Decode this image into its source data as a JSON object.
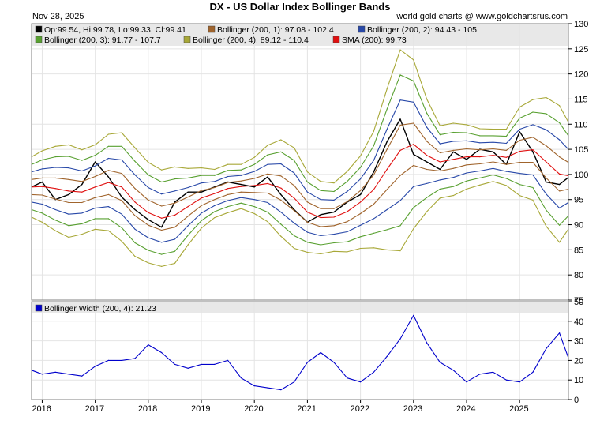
{
  "header": {
    "title": "DX  -  US Dollar Index Bollinger Bands",
    "date": "Nov 28, 2025",
    "credit": "world gold charts @ www.goldchartsrus.com"
  },
  "chart_data": [
    {
      "type": "line",
      "title": "DX - US Dollar Index Bollinger Bands",
      "ylim": [
        75,
        130
      ],
      "yticks": [
        75,
        80,
        85,
        90,
        95,
        100,
        105,
        110,
        115,
        120,
        125,
        130
      ],
      "x": [
        2015.8,
        2016.0,
        2016.25,
        2016.5,
        2016.75,
        2017.0,
        2017.25,
        2017.5,
        2017.75,
        2018.0,
        2018.25,
        2018.5,
        2018.75,
        2019.0,
        2019.25,
        2019.5,
        2019.75,
        2020.0,
        2020.25,
        2020.5,
        2020.75,
        2021.0,
        2021.25,
        2021.5,
        2021.75,
        2022.0,
        2022.25,
        2022.5,
        2022.75,
        2023.0,
        2023.25,
        2023.5,
        2023.75,
        2024.0,
        2024.25,
        2024.5,
        2024.75,
        2025.0,
        2025.25,
        2025.5,
        2025.75,
        2025.92
      ],
      "legend": [
        {
          "label": "Op:99.54, Hi:99.78, Lo:99.33, Cl:99.41",
          "color": "#000000"
        },
        {
          "label": "Bollinger (200, 1): 97.08 - 102.4",
          "color": "#a0642c"
        },
        {
          "label": "Bollinger (200, 2): 94.43 - 105",
          "color": "#2848a8"
        },
        {
          "label": "Bollinger (200, 3): 91.77 - 107.7",
          "color": "#58a030"
        },
        {
          "label": "Bollinger (200, 4): 89.12 - 110.4",
          "color": "#a8a838"
        },
        {
          "label": "SMA (200): 99.73",
          "color": "#e01010"
        }
      ],
      "series": [
        {
          "name": "DX Close",
          "color": "#000000",
          "values": [
            97.5,
            98.5,
            95.0,
            96.0,
            98.0,
            102.5,
            99.5,
            95.5,
            93.0,
            91.0,
            89.5,
            94.5,
            96.5,
            96.5,
            97.5,
            98.5,
            98.0,
            97.5,
            99.5,
            96.0,
            93.0,
            90.5,
            92.0,
            92.5,
            94.5,
            96.0,
            100.5,
            106.5,
            111.0,
            104.0,
            102.5,
            101.0,
            104.5,
            103.0,
            105.0,
            104.5,
            102.0,
            108.5,
            104.5,
            98.5,
            98.0,
            99.41
          ]
        },
        {
          "name": "SMA (200)",
          "color": "#e01010",
          "values": [
            97.5,
            97.6,
            97.2,
            96.7,
            96.5,
            97.5,
            98.4,
            97.5,
            94.5,
            92.4,
            91.3,
            91.9,
            93.6,
            95.3,
            96.2,
            97.2,
            97.6,
            97.8,
            98.2,
            97.3,
            95.3,
            92.5,
            91.4,
            91.5,
            92.6,
            94.5,
            97.0,
            101.0,
            104.8,
            106.0,
            103.8,
            102.5,
            103.0,
            103.5,
            103.5,
            103.8,
            103.4,
            104.6,
            104.9,
            102.5,
            100.1,
            99.73
          ]
        },
        {
          "name": "Bollinger (200, 1) upper",
          "color": "#a0642c",
          "values": [
            99.0,
            99.3,
            99.3,
            99.0,
            98.6,
            99.6,
            100.8,
            100.2,
            97.2,
            94.9,
            93.7,
            94.3,
            95.5,
            96.8,
            97.4,
            98.4,
            98.7,
            99.2,
            100.1,
            99.7,
            97.8,
            94.5,
            93.2,
            93.2,
            94.6,
            96.8,
            99.9,
            105.0,
            109.8,
            110.2,
            106.6,
            104.3,
            104.8,
            105.1,
            104.9,
            105.1,
            104.8,
            106.8,
            107.4,
            105.7,
            103.5,
            102.4
          ]
        },
        {
          "name": "Bollinger (200, 1) lower",
          "color": "#a0642c",
          "values": [
            96.0,
            95.9,
            95.1,
            94.4,
            94.4,
            95.4,
            96.0,
            94.8,
            91.8,
            89.9,
            88.9,
            89.5,
            91.7,
            93.8,
            95.0,
            96.0,
            96.5,
            96.4,
            96.3,
            94.9,
            92.8,
            90.5,
            89.6,
            89.8,
            90.6,
            92.2,
            94.1,
            97.0,
            99.8,
            101.8,
            101.0,
            100.7,
            101.2,
            101.9,
            102.1,
            102.5,
            102.0,
            102.4,
            102.4,
            99.3,
            96.7,
            97.08
          ]
        },
        {
          "name": "Bollinger (200, 2) upper",
          "color": "#2848a8",
          "values": [
            100.5,
            101.1,
            101.4,
            101.3,
            100.7,
            101.7,
            103.2,
            102.9,
            99.9,
            97.4,
            96.1,
            96.7,
            97.4,
            98.3,
            98.6,
            99.6,
            99.8,
            100.6,
            102.0,
            102.1,
            100.3,
            96.5,
            95.0,
            94.9,
            96.6,
            99.1,
            102.8,
            109.0,
            114.8,
            114.4,
            109.4,
            106.1,
            106.6,
            106.7,
            106.3,
            106.4,
            106.2,
            109.0,
            109.9,
            108.9,
            106.9,
            105.0
          ]
        },
        {
          "name": "Bollinger (200, 2) lower",
          "color": "#2848a8",
          "values": [
            94.5,
            94.1,
            93.0,
            92.1,
            92.3,
            93.3,
            93.6,
            92.1,
            89.1,
            87.4,
            86.5,
            87.1,
            89.8,
            92.3,
            93.8,
            94.8,
            95.4,
            95.0,
            94.4,
            92.5,
            90.3,
            88.5,
            87.8,
            88.1,
            88.6,
            89.9,
            91.2,
            93.0,
            94.8,
            97.6,
            98.2,
            98.9,
            99.4,
            100.3,
            100.7,
            101.2,
            100.6,
            100.2,
            99.9,
            96.1,
            93.3,
            94.43
          ]
        },
        {
          "name": "Bollinger (200, 3) upper",
          "color": "#58a030",
          "values": [
            102.0,
            102.9,
            103.5,
            103.6,
            102.8,
            103.8,
            105.6,
            105.6,
            102.6,
            99.9,
            98.5,
            99.1,
            99.3,
            99.8,
            99.8,
            100.8,
            100.9,
            102.0,
            103.9,
            104.5,
            102.8,
            98.5,
            96.8,
            96.6,
            98.6,
            101.4,
            105.7,
            113.0,
            119.8,
            118.6,
            112.2,
            107.9,
            108.4,
            108.3,
            107.7,
            107.7,
            107.6,
            111.2,
            112.4,
            112.1,
            110.3,
            107.7
          ]
        },
        {
          "name": "Bollinger (200, 3) lower",
          "color": "#58a030",
          "values": [
            93.0,
            92.3,
            90.9,
            89.8,
            90.2,
            91.2,
            91.2,
            89.4,
            86.4,
            84.9,
            84.1,
            84.7,
            87.9,
            90.8,
            92.6,
            93.6,
            94.3,
            93.6,
            92.5,
            90.1,
            87.8,
            86.5,
            86.0,
            86.4,
            86.6,
            87.6,
            88.3,
            89.0,
            89.8,
            93.4,
            95.4,
            97.1,
            97.6,
            98.7,
            99.3,
            99.9,
            99.2,
            98.0,
            97.4,
            92.9,
            89.9,
            91.77
          ]
        },
        {
          "name": "Bollinger (200, 4) upper",
          "color": "#a8a838",
          "values": [
            103.5,
            104.7,
            105.6,
            105.9,
            104.9,
            105.9,
            108.0,
            108.3,
            105.3,
            102.4,
            100.9,
            101.5,
            101.2,
            101.3,
            101.0,
            102.0,
            102.0,
            103.4,
            105.8,
            106.9,
            105.3,
            100.5,
            98.6,
            98.3,
            100.6,
            103.7,
            108.6,
            117.0,
            124.8,
            122.8,
            115.0,
            109.7,
            110.2,
            109.9,
            109.1,
            109.0,
            109.0,
            113.4,
            114.9,
            115.3,
            113.7,
            110.4
          ]
        },
        {
          "name": "Bollinger (200, 4) lower",
          "color": "#a8a838",
          "values": [
            91.5,
            90.5,
            88.8,
            87.5,
            88.1,
            89.1,
            88.8,
            86.7,
            83.7,
            82.4,
            81.7,
            82.3,
            86.0,
            89.3,
            91.4,
            92.4,
            93.2,
            92.2,
            90.6,
            87.7,
            85.3,
            84.5,
            84.2,
            84.7,
            84.6,
            85.3,
            85.4,
            85.0,
            84.8,
            89.2,
            92.6,
            95.3,
            95.8,
            97.1,
            97.9,
            98.6,
            97.8,
            95.8,
            94.9,
            89.7,
            86.5,
            89.12
          ]
        }
      ]
    },
    {
      "type": "line",
      "title": "Bollinger Width",
      "ylim": [
        0,
        50
      ],
      "yticks": [
        0,
        10,
        20,
        30,
        40,
        50
      ],
      "legend": [
        {
          "label": "Bollinger Width (200, 4): 21.23",
          "color": "#0000cc"
        }
      ],
      "x": [
        2015.8,
        2016.0,
        2016.25,
        2016.5,
        2016.75,
        2017.0,
        2017.25,
        2017.5,
        2017.75,
        2018.0,
        2018.25,
        2018.5,
        2018.75,
        2019.0,
        2019.25,
        2019.5,
        2019.75,
        2020.0,
        2020.25,
        2020.5,
        2020.75,
        2021.0,
        2021.25,
        2021.5,
        2021.75,
        2022.0,
        2022.25,
        2022.5,
        2022.75,
        2023.0,
        2023.25,
        2023.5,
        2023.75,
        2024.0,
        2024.25,
        2024.5,
        2024.75,
        2025.0,
        2025.25,
        2025.5,
        2025.75,
        2025.92
      ],
      "series": [
        {
          "name": "Bollinger Width (200, 4)",
          "color": "#0000cc",
          "values": [
            15,
            13,
            14,
            13,
            12,
            17,
            20,
            20,
            21,
            28,
            24,
            18,
            16,
            18,
            18,
            20,
            11,
            7,
            6,
            5,
            9,
            19,
            24,
            19,
            11,
            9,
            14,
            22,
            31,
            43,
            29,
            19,
            15,
            9,
            13,
            14,
            10,
            9,
            14,
            26,
            34,
            21.23
          ]
        }
      ]
    }
  ],
  "xaxis": {
    "labels": [
      "2016",
      "2017",
      "2018",
      "2019",
      "2020",
      "2021",
      "2022",
      "2023",
      "2024",
      "2025"
    ],
    "years": [
      2016,
      2017,
      2018,
      2019,
      2020,
      2021,
      2022,
      2023,
      2024,
      2025
    ],
    "range": [
      2015.8,
      2025.92
    ]
  }
}
